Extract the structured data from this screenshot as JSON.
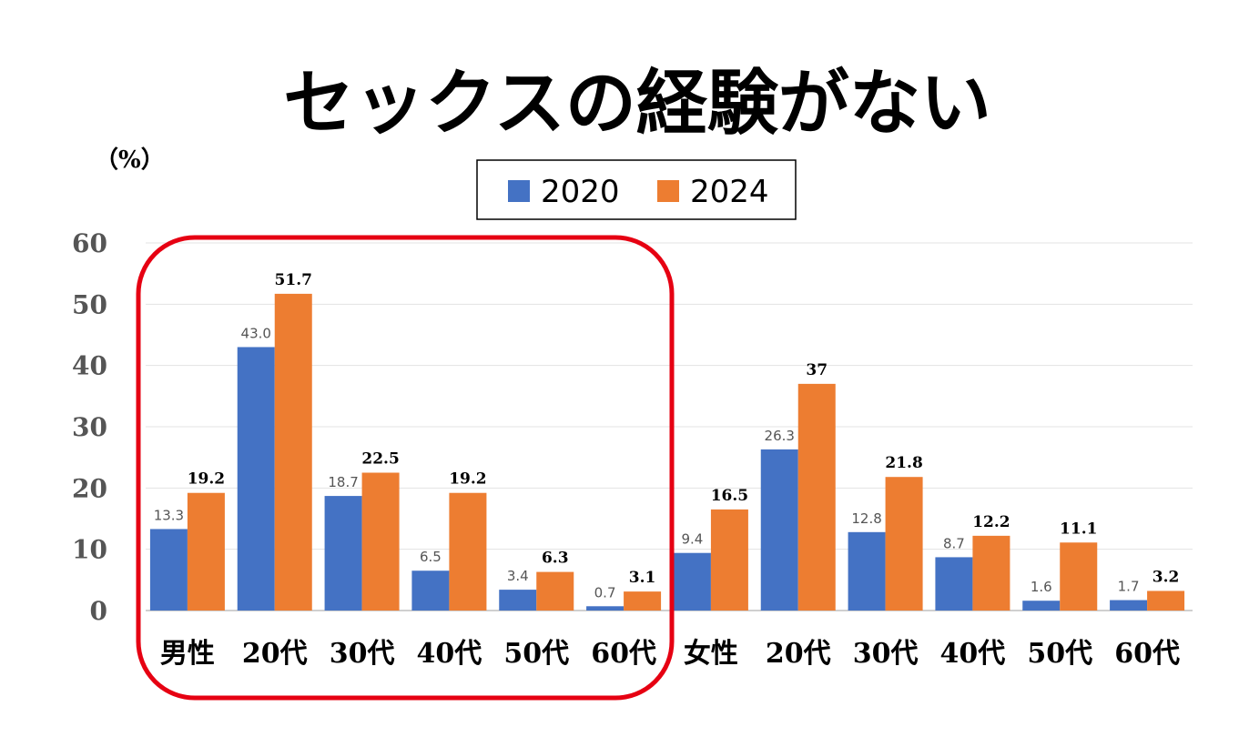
{
  "chart_data": {
    "type": "bar",
    "title": "セックスの経験がない",
    "ylabel": "（%）",
    "ylim": [
      0,
      60
    ],
    "yticks": [
      0,
      10,
      20,
      30,
      40,
      50,
      60
    ],
    "grid": true,
    "legend_position": "top",
    "categories": [
      "男性",
      "20代",
      "30代",
      "40代",
      "50代",
      "60代",
      "女性",
      "20代",
      "30代",
      "40代",
      "50代",
      "60代"
    ],
    "series": [
      {
        "name": "2020",
        "color": "#4472C4",
        "values": [
          13.3,
          43.0,
          18.7,
          6.5,
          3.4,
          0.7,
          9.4,
          26.3,
          12.8,
          8.7,
          1.6,
          1.7
        ],
        "labels": [
          "13.3",
          "43.0",
          "18.7",
          "6.5",
          "3.4",
          "0.7",
          "9.4",
          "26.3",
          "12.8",
          "8.7",
          "1.6",
          "1.7"
        ]
      },
      {
        "name": "2024",
        "color": "#ED7D31",
        "values": [
          19.2,
          51.7,
          22.5,
          19.2,
          6.3,
          3.1,
          16.5,
          37,
          21.8,
          12.2,
          11.1,
          3.2
        ],
        "labels": [
          "19.2",
          "51.7",
          "22.5",
          "19.2",
          "6.3",
          "3.1",
          "16.5",
          "37",
          "21.8",
          "12.2",
          "11.1",
          "3.2"
        ]
      }
    ],
    "highlight": {
      "from_category": 0,
      "to_category": 5,
      "color": "#E60012"
    }
  }
}
